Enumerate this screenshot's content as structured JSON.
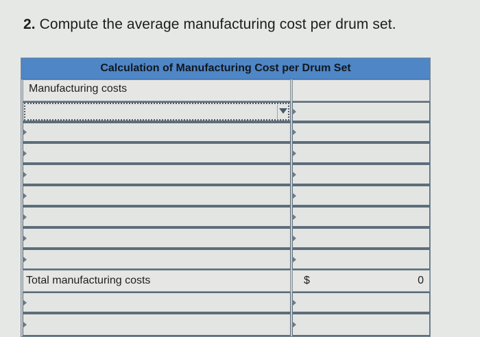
{
  "question": {
    "number": "2.",
    "text": "Compute the average manufacturing cost per drum set."
  },
  "table": {
    "title": "Calculation of Manufacturing Cost per Drum Set",
    "section_label": "Manufacturing costs",
    "total_label": "Total manufacturing costs",
    "currency_symbol": "$",
    "total_value": "0"
  }
}
